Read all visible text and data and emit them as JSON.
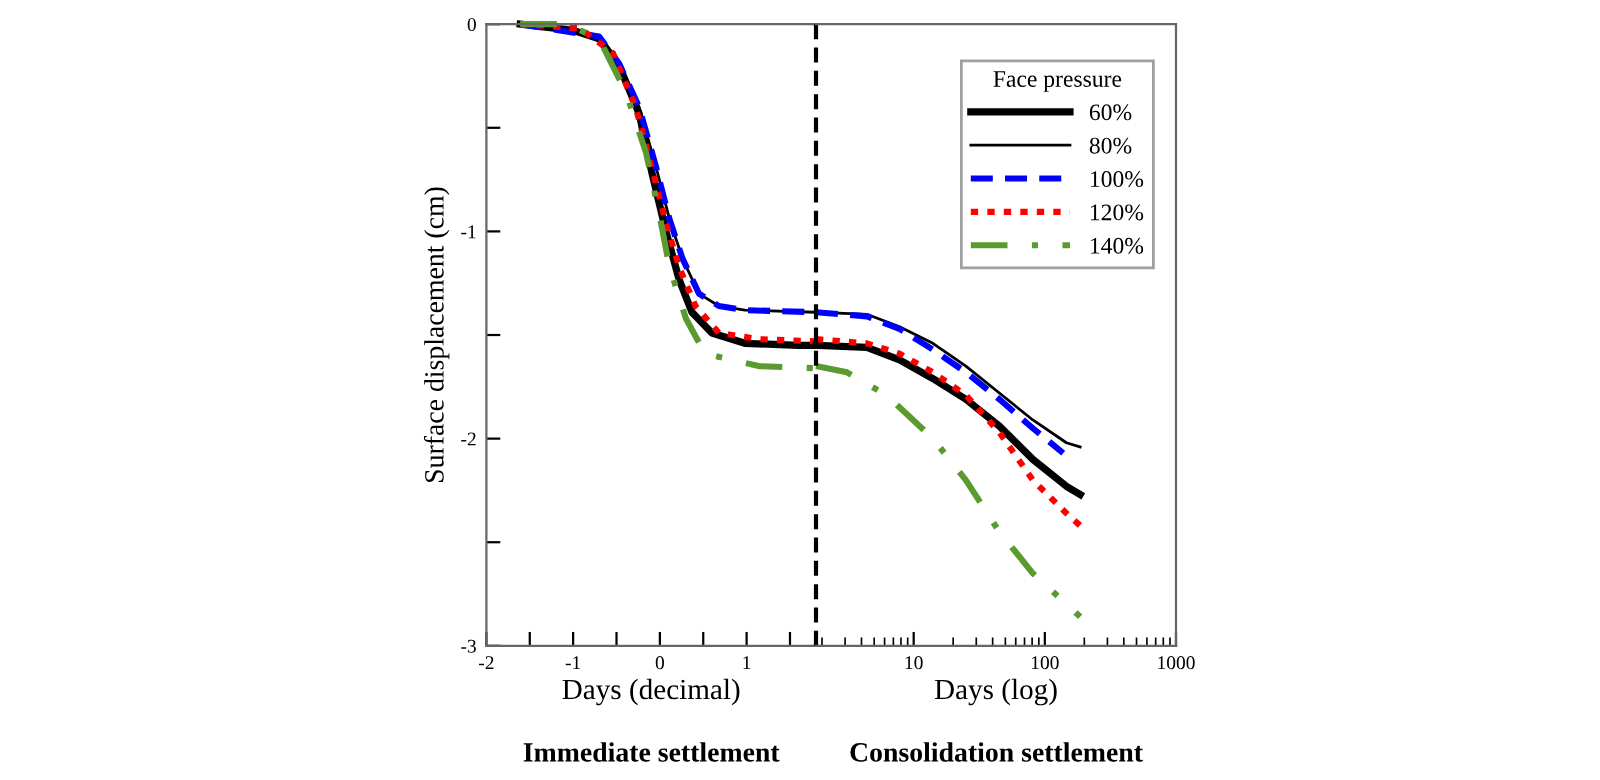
{
  "chart_data": [
    {
      "type": "line",
      "xlabel": "Days (decimal)",
      "ylabel": "Surface displacement (cm)",
      "xlim": [
        -2,
        1.8
      ],
      "xticks": [
        -2,
        {
          "value": -1.5,
          "label": null
        },
        -1,
        {
          "value": -0.5,
          "label": null
        },
        0,
        {
          "value": 0.5,
          "label": null
        },
        1,
        {
          "value": 1.5,
          "label": null
        }
      ],
      "ylim": [
        -3,
        0
      ],
      "yticks": [
        -3,
        {
          "value": -2.5,
          "label": null
        },
        -2,
        {
          "value": -1.5,
          "label": null
        },
        -1,
        {
          "value": -0.5,
          "label": null
        },
        0
      ],
      "annotations": [
        "Immediate settlement"
      ],
      "grid": false,
      "legend": false,
      "series": [
        {
          "color": "#000000",
          "line_style": "solid",
          "x": [
            -1.61,
            -1.0,
            -0.7,
            -0.47,
            -0.24,
            -0.09,
            0.07,
            0.22,
            0.37,
            0.6,
            0.98,
            1.59,
            1.78
          ],
          "values": [
            0,
            -0.03,
            -0.07,
            -0.2,
            -0.43,
            -0.72,
            -1.0,
            -1.23,
            -1.39,
            -1.49,
            -1.54,
            -1.55,
            -1.55
          ]
        },
        {
          "color": "#000000",
          "line_style": "solid",
          "x": [
            -1.61,
            -0.7,
            -0.47,
            -0.24,
            -0.05,
            0.11,
            0.26,
            0.45,
            0.68,
            0.98,
            1.78
          ],
          "values": [
            0,
            -0.06,
            -0.19,
            -0.4,
            -0.68,
            -0.94,
            -1.13,
            -1.3,
            -1.36,
            -1.38,
            -1.39
          ]
        },
        {
          "color": "#0000ff",
          "line_style": "dashed",
          "x": [
            -1.61,
            -0.7,
            -0.47,
            -0.24,
            -0.05,
            0.11,
            0.26,
            0.45,
            0.68,
            0.98,
            1.78
          ],
          "values": [
            0,
            -0.06,
            -0.19,
            -0.4,
            -0.68,
            -0.94,
            -1.13,
            -1.3,
            -1.36,
            -1.38,
            -1.39
          ]
        },
        {
          "color": "#ff0000",
          "line_style": "dotted",
          "x": [
            -1.61,
            -0.92,
            -0.54,
            -0.28,
            -0.1,
            0.07,
            0.22,
            0.41,
            0.68,
            1.14,
            1.78
          ],
          "values": [
            0,
            -0.02,
            -0.14,
            -0.4,
            -0.68,
            -0.96,
            -1.17,
            -1.36,
            -1.49,
            -1.52,
            -1.53
          ]
        },
        {
          "color": "#5a9a2e",
          "line_style": "dashdot",
          "x": [
            -1.61,
            -1.08,
            -0.7,
            -0.39,
            -0.16,
            -0.01,
            0.11,
            0.3,
            0.52,
            1.14,
            1.78
          ],
          "values": [
            0,
            0,
            -0.07,
            -0.33,
            -0.62,
            -0.91,
            -1.17,
            -1.42,
            -1.59,
            -1.65,
            -1.66
          ]
        }
      ]
    },
    {
      "type": "line",
      "xlabel": "Days (log)",
      "log": "x",
      "xlim": [
        1.8,
        1000
      ],
      "xticks": [
        10,
        100,
        1000
      ],
      "ylim": [
        -3,
        0
      ],
      "tick_labels": "x",
      "annotations": [
        "Consolidation settlement"
      ],
      "grid": false,
      "legend": "top right",
      "legend_title": "Face pressure",
      "ref_lines": [
        {
          "axis": "x",
          "value": 1.8,
          "color": "#000000",
          "line_style": "dashed"
        }
      ],
      "series": [
        {
          "name": "60%",
          "color": "#000000",
          "line_style": "solid",
          "x": [
            1.8,
            4.4,
            7.8,
            14,
            25,
            45,
            81,
            146,
            186
          ],
          "values": [
            -1.55,
            -1.56,
            -1.62,
            -1.71,
            -1.81,
            -1.94,
            -2.1,
            -2.23,
            -2.27
          ]
        },
        {
          "name": "80%",
          "color": "#000000",
          "line_style": "solid",
          "x": [
            1.8,
            4.4,
            7.8,
            14,
            25,
            45,
            81,
            146,
            186
          ],
          "values": [
            -1.39,
            -1.4,
            -1.46,
            -1.54,
            -1.65,
            -1.78,
            -1.91,
            -2.02,
            -2.04
          ]
        },
        {
          "name": "100%",
          "color": "#0000ff",
          "line_style": "dashed",
          "x": [
            1.8,
            4.4,
            7.8,
            14,
            25,
            45,
            81,
            138
          ],
          "values": [
            -1.39,
            -1.41,
            -1.47,
            -1.57,
            -1.68,
            -1.81,
            -1.95,
            -2.07
          ]
        },
        {
          "name": "120%",
          "color": "#ff0000",
          "line_style": "dotted",
          "x": [
            1.8,
            4.4,
            7.8,
            14,
            25,
            45,
            81,
            146,
            186
          ],
          "values": [
            -1.52,
            -1.54,
            -1.59,
            -1.68,
            -1.79,
            -1.97,
            -2.2,
            -2.36,
            -2.42
          ]
        },
        {
          "name": "140%",
          "color": "#5a9a2e",
          "line_style": "dashdot",
          "x": [
            1.8,
            3.1,
            6.2,
            14,
            25,
            45,
            81,
            186
          ],
          "values": [
            -1.65,
            -1.68,
            -1.79,
            -2.0,
            -2.2,
            -2.45,
            -2.65,
            -2.86
          ]
        }
      ]
    }
  ]
}
